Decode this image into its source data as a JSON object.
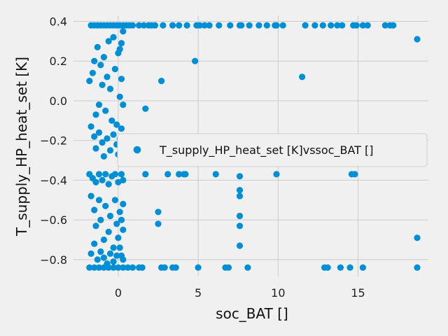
{
  "chart_data": {
    "type": "scatter",
    "title": "",
    "xlabel": "soc_BAT []",
    "ylabel": "T_supply_HP_heat_set [K]",
    "xlim": [
      -2.8,
      19.4
    ],
    "ylim": [
      -0.885,
      0.43
    ],
    "xticks": [
      0,
      5,
      10,
      15
    ],
    "yticks": [
      -0.8,
      -0.6,
      -0.4,
      -0.2,
      0.0,
      0.2,
      0.4
    ],
    "xtick_labels": [
      "0",
      "5",
      "10",
      "15"
    ],
    "ytick_labels": [
      "−0.8",
      "−0.6",
      "−0.4",
      "−0.2",
      "0.0",
      "0.2",
      "0.4"
    ],
    "grid": true,
    "legend_placement": "right",
    "marker_color": "#008fd5",
    "series": [
      {
        "name": "T_supply_HP_heat_set [K]vssoc_BAT []",
        "points": [
          [
            -1.7,
            0.38
          ],
          [
            -1.5,
            0.38
          ],
          [
            -1.3,
            0.38
          ],
          [
            -1.1,
            0.38
          ],
          [
            -0.9,
            0.38
          ],
          [
            -0.7,
            0.38
          ],
          [
            -0.5,
            0.38
          ],
          [
            -0.3,
            0.38
          ],
          [
            -0.1,
            0.38
          ],
          [
            0.1,
            0.38
          ],
          [
            0.3,
            0.38
          ],
          [
            0.5,
            0.38
          ],
          [
            0.7,
            0.38
          ],
          [
            0.9,
            0.38
          ],
          [
            1.3,
            0.38
          ],
          [
            1.6,
            0.38
          ],
          [
            1.9,
            0.38
          ],
          [
            2.1,
            0.38
          ],
          [
            2.3,
            0.38
          ],
          [
            2.8,
            0.38
          ],
          [
            3.4,
            0.38
          ],
          [
            3.8,
            0.38
          ],
          [
            4.3,
            0.38
          ],
          [
            4.9,
            0.38
          ],
          [
            5.1,
            0.38
          ],
          [
            5.4,
            0.38
          ],
          [
            5.7,
            0.38
          ],
          [
            6.3,
            0.38
          ],
          [
            7.0,
            0.38
          ],
          [
            7.6,
            0.38
          ],
          [
            7.7,
            0.38
          ],
          [
            8.2,
            0.38
          ],
          [
            8.8,
            0.38
          ],
          [
            9.3,
            0.38
          ],
          [
            9.8,
            0.38
          ],
          [
            9.9,
            0.38
          ],
          [
            10.3,
            0.38
          ],
          [
            11.7,
            0.38
          ],
          [
            12.3,
            0.38
          ],
          [
            12.8,
            0.38
          ],
          [
            13.3,
            0.38
          ],
          [
            13.7,
            0.38
          ],
          [
            14.0,
            0.38
          ],
          [
            14.7,
            0.38
          ],
          [
            14.9,
            0.38
          ],
          [
            15.3,
            0.38
          ],
          [
            15.6,
            0.38
          ],
          [
            16.7,
            0.38
          ],
          [
            17.0,
            0.38
          ],
          [
            17.2,
            0.38
          ],
          [
            18.7,
            0.31
          ],
          [
            4.8,
            0.2
          ],
          [
            11.5,
            0.12
          ],
          [
            2.7,
            0.1
          ],
          [
            1.7,
            -0.04
          ],
          [
            1.7,
            -0.37
          ],
          [
            3.1,
            -0.37
          ],
          [
            3.8,
            -0.37
          ],
          [
            4.1,
            -0.37
          ],
          [
            4.2,
            -0.37
          ],
          [
            6.1,
            -0.37
          ],
          [
            7.6,
            -0.38
          ],
          [
            9.9,
            -0.37
          ],
          [
            14.6,
            -0.37
          ],
          [
            14.8,
            -0.37
          ],
          [
            7.6,
            -0.45
          ],
          [
            7.6,
            -0.48
          ],
          [
            7.6,
            -0.58
          ],
          [
            7.6,
            -0.63
          ],
          [
            7.6,
            -0.73
          ],
          [
            2.5,
            -0.56
          ],
          [
            2.5,
            -0.62
          ],
          [
            18.7,
            -0.69
          ],
          [
            -1.8,
            -0.84
          ],
          [
            -1.5,
            -0.84
          ],
          [
            -1.2,
            -0.84
          ],
          [
            -0.9,
            -0.84
          ],
          [
            -0.6,
            -0.84
          ],
          [
            -0.3,
            -0.84
          ],
          [
            0.0,
            -0.84
          ],
          [
            0.3,
            -0.84
          ],
          [
            0.6,
            -0.84
          ],
          [
            0.9,
            -0.84
          ],
          [
            1.3,
            -0.84
          ],
          [
            1.5,
            -0.84
          ],
          [
            2.7,
            -0.84
          ],
          [
            2.9,
            -0.84
          ],
          [
            3.4,
            -0.84
          ],
          [
            3.6,
            -0.84
          ],
          [
            5.0,
            -0.84
          ],
          [
            6.7,
            -0.84
          ],
          [
            6.9,
            -0.84
          ],
          [
            8.1,
            -0.84
          ],
          [
            12.9,
            -0.84
          ],
          [
            13.1,
            -0.84
          ],
          [
            13.9,
            -0.84
          ],
          [
            14.5,
            -0.84
          ],
          [
            15.3,
            -0.84
          ],
          [
            18.7,
            -0.84
          ],
          [
            -1.8,
            0.1
          ],
          [
            -1.6,
            0.14
          ],
          [
            -1.5,
            0.2
          ],
          [
            -1.4,
            -0.07
          ],
          [
            -1.3,
            0.27
          ],
          [
            -1.2,
            -0.02
          ],
          [
            -1.1,
            0.18
          ],
          [
            -1.0,
            0.08
          ],
          [
            -0.9,
            0.22
          ],
          [
            -0.8,
            -0.05
          ],
          [
            -0.7,
            0.12
          ],
          [
            -0.6,
            0.3
          ],
          [
            -0.5,
            0.06
          ],
          [
            -0.4,
            -0.1
          ],
          [
            -0.3,
            0.32
          ],
          [
            -0.2,
            0.16
          ],
          [
            -0.1,
            -0.12
          ],
          [
            0.0,
            0.24
          ],
          [
            0.1,
            0.02
          ],
          [
            0.2,
            0.29
          ],
          [
            0.3,
            0.35
          ],
          [
            0.3,
            -0.02
          ],
          [
            0.2,
            0.11
          ],
          [
            0.1,
            0.26
          ],
          [
            -1.7,
            -0.13
          ],
          [
            -1.5,
            -0.18
          ],
          [
            -1.4,
            -0.24
          ],
          [
            -1.2,
            -0.16
          ],
          [
            -1.0,
            -0.21
          ],
          [
            -0.9,
            -0.28
          ],
          [
            -0.7,
            -0.19
          ],
          [
            -0.5,
            -0.25
          ],
          [
            -0.3,
            -0.17
          ],
          [
            -0.1,
            -0.22
          ],
          [
            0.0,
            -0.27
          ],
          [
            0.1,
            -0.19
          ],
          [
            0.2,
            -0.14
          ],
          [
            0.3,
            -0.23
          ],
          [
            0.3,
            -0.31
          ],
          [
            -1.8,
            -0.37
          ],
          [
            -1.6,
            -0.39
          ],
          [
            -1.4,
            -0.41
          ],
          [
            -1.2,
            -0.37
          ],
          [
            -1.0,
            -0.4
          ],
          [
            -0.8,
            -0.37
          ],
          [
            -0.6,
            -0.42
          ],
          [
            -0.4,
            -0.38
          ],
          [
            -0.2,
            -0.37
          ],
          [
            0.0,
            -0.41
          ],
          [
            0.2,
            -0.37
          ],
          [
            0.3,
            -0.4
          ],
          [
            -1.7,
            -0.48
          ],
          [
            -1.5,
            -0.55
          ],
          [
            -1.4,
            -0.63
          ],
          [
            -1.2,
            -0.5
          ],
          [
            -1.1,
            -0.6
          ],
          [
            -0.9,
            -0.7
          ],
          [
            -0.8,
            -0.53
          ],
          [
            -0.6,
            -0.66
          ],
          [
            -0.5,
            -0.58
          ],
          [
            -0.3,
            -0.74
          ],
          [
            -0.2,
            -0.5
          ],
          [
            -0.1,
            -0.62
          ],
          [
            0.0,
            -0.69
          ],
          [
            0.1,
            -0.56
          ],
          [
            0.2,
            -0.78
          ],
          [
            0.3,
            -0.65
          ],
          [
            0.3,
            -0.52
          ],
          [
            0.2,
            -0.6
          ],
          [
            -1.7,
            -0.77
          ],
          [
            -1.5,
            -0.72
          ],
          [
            -1.3,
            -0.8
          ],
          [
            -1.1,
            -0.76
          ],
          [
            -0.9,
            -0.79
          ],
          [
            -0.7,
            -0.82
          ],
          [
            -0.5,
            -0.77
          ],
          [
            -0.3,
            -0.81
          ],
          [
            -0.1,
            -0.78
          ],
          [
            0.1,
            -0.74
          ],
          [
            0.3,
            -0.8
          ]
        ]
      }
    ]
  }
}
